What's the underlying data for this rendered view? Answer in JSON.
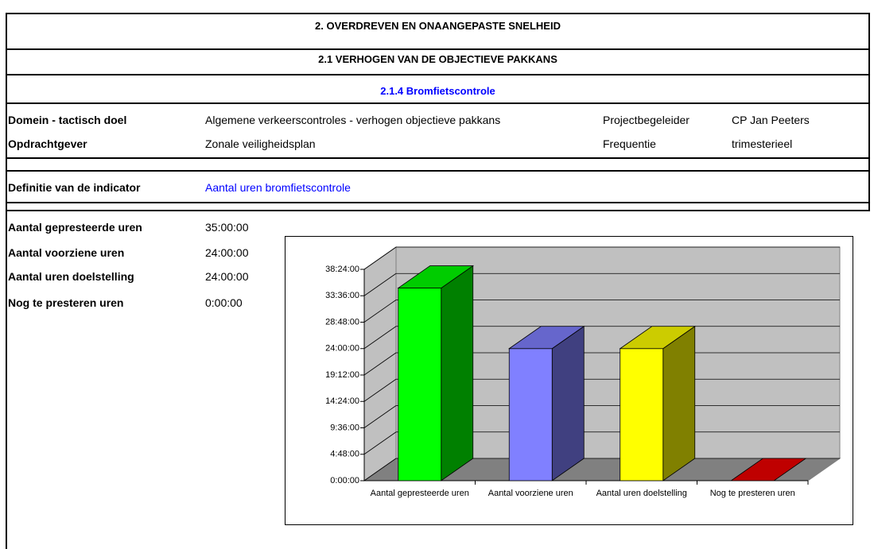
{
  "header": {
    "title": "2. OVERDREVEN EN ONAANGEPASTE SNELHEID",
    "section": "2.1 VERHOGEN VAN DE OBJECTIEVE PAKKANS",
    "subsection": "2.1.4 Bromfietscontrole"
  },
  "info": {
    "rows": [
      [
        "Domein - tactisch doel",
        "Algemene verkeerscontroles - verhogen objectieve pakkans",
        "Projectbegeleider",
        "CP Jan Peeters"
      ],
      [
        "Opdrachtgever",
        "Zonale veiligheidsplan",
        "Frequentie",
        "trimesterieel"
      ]
    ]
  },
  "definition": {
    "label": "Definitie van de indicator",
    "value": "Aantal uren bromfietscontrole"
  },
  "summary": {
    "rows": [
      [
        "Aantal gepresteerde uren",
        "35:00:00"
      ],
      [
        "Aantal voorziene uren",
        "24:00:00"
      ],
      [
        "Aantal uren doelstelling",
        "24:00:00"
      ],
      [
        "Nog te presteren uren",
        "0:00:00"
      ]
    ]
  },
  "chart_data": {
    "type": "bar3d",
    "categories": [
      "Aantal gepresteerde uren",
      "Aantal voorziene uren",
      "Aantal uren doelstelling",
      "Nog te presteren uren"
    ],
    "values": [
      35,
      24,
      24,
      0
    ],
    "colors": [
      "#00ff00",
      "#8080ff",
      "#ffff00",
      "#ff0000"
    ],
    "ylim": [
      0,
      38.4
    ],
    "yticks": [
      {
        "value": 0,
        "label": "0:00:00"
      },
      {
        "value": 4.8,
        "label": "4:48:00"
      },
      {
        "value": 9.6,
        "label": "9:36:00"
      },
      {
        "value": 14.4,
        "label": "14:24:00"
      },
      {
        "value": 19.2,
        "label": "19:12:00"
      },
      {
        "value": 24,
        "label": "24:00:00"
      },
      {
        "value": 28.8,
        "label": "28:48:00"
      },
      {
        "value": 33.6,
        "label": "33:36:00"
      },
      {
        "value": 38.4,
        "label": "38:24:00"
      }
    ],
    "grid": true
  }
}
